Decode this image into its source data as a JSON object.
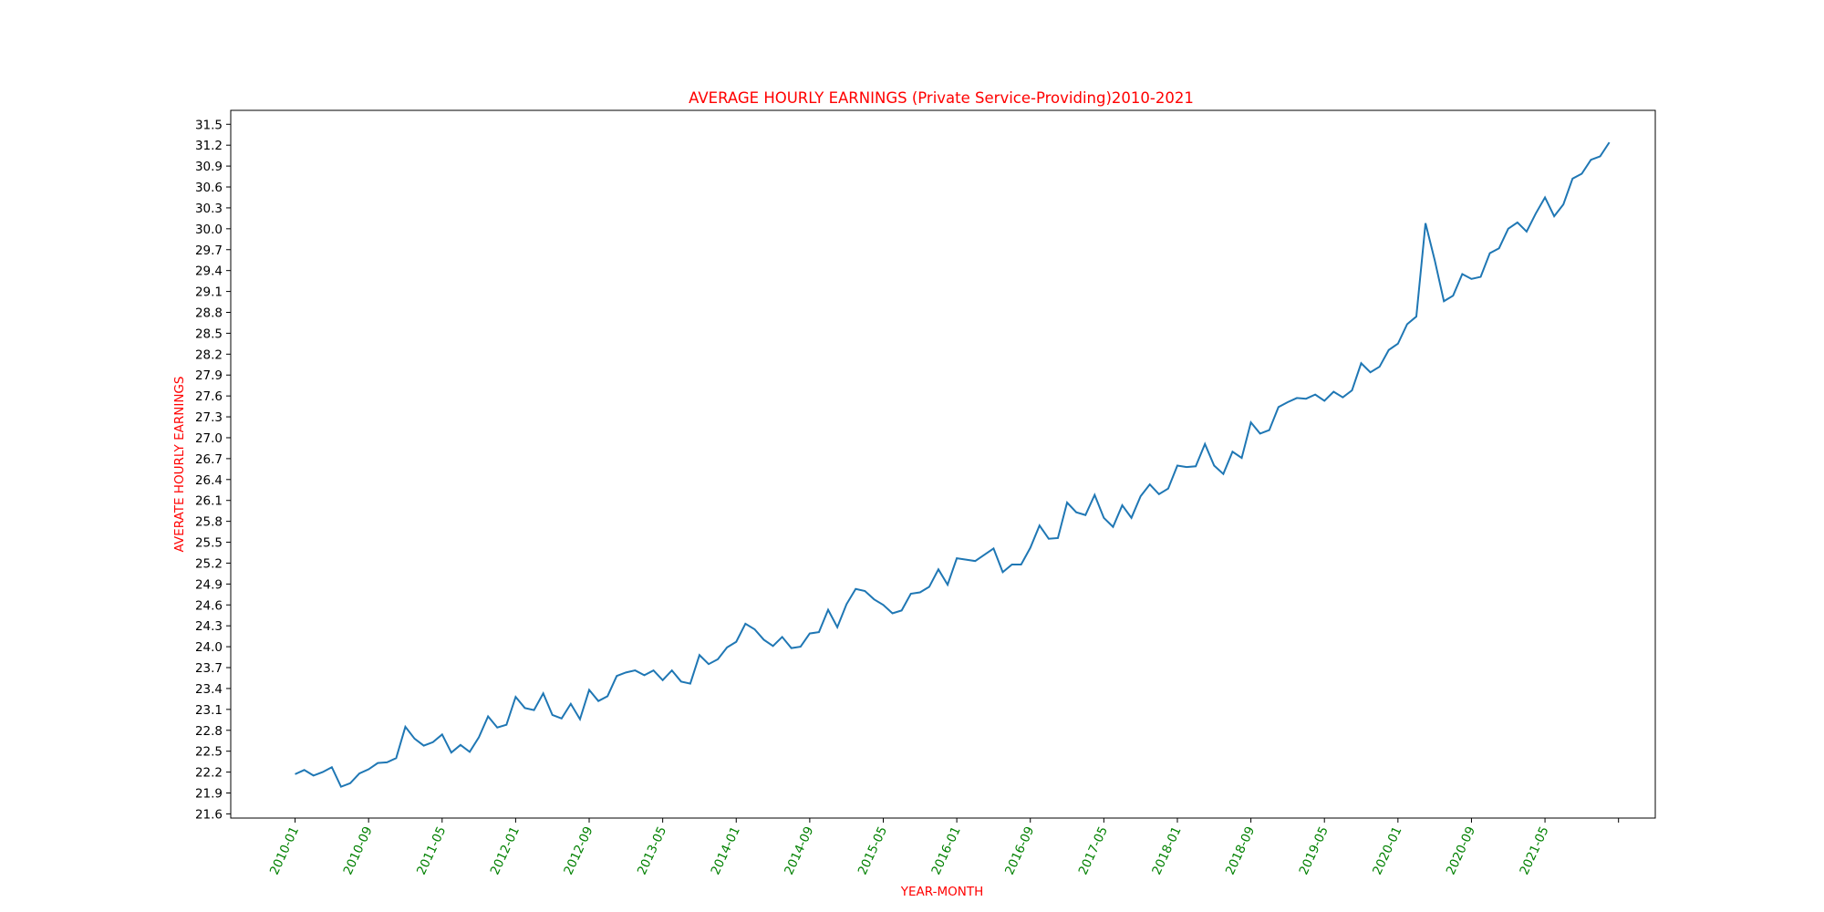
{
  "chart_data": {
    "type": "line",
    "title": "AVERAGE HOURLY EARNINGS (Private Service-Providing)2010-2021",
    "xlabel": "YEAR-MONTH",
    "ylabel": "AVERATE HOURLY EARNINGS",
    "x_tick_labels": [
      "2010-01",
      "2010-09",
      "2011-05",
      "2012-01",
      "2012-09",
      "2013-05",
      "2014-01",
      "2014-09",
      "2015-05",
      "2016-01",
      "2016-09",
      "2017-05",
      "2018-01",
      "2018-09",
      "2019-05",
      "2020-01",
      "2020-09",
      "2021-05"
    ],
    "y_ticks": [
      "21.6",
      "21.9",
      "22.2",
      "22.5",
      "22.8",
      "23.1",
      "23.4",
      "23.7",
      "24.0",
      "24.3",
      "24.6",
      "24.9",
      "25.2",
      "25.5",
      "25.8",
      "26.1",
      "26.4",
      "26.7",
      "27.0",
      "27.3",
      "27.6",
      "27.9",
      "28.2",
      "28.5",
      "28.8",
      "29.1",
      "29.4",
      "29.7",
      "30.0",
      "30.3",
      "30.6",
      "30.9",
      "31.2",
      "31.5"
    ],
    "ylim": [
      21.54,
      31.7
    ],
    "xlim": [
      "2009-06",
      "2022-05"
    ],
    "grid": false,
    "legend": "none",
    "colors": {
      "line": "#1f77b4",
      "title": "#ff0000",
      "axis_labels": "#ff0000",
      "x_tick_labels": "#008000"
    },
    "series": [
      {
        "x": [
          "2010-01",
          "2010-02",
          "2010-03",
          "2010-04",
          "2010-05",
          "2010-06",
          "2010-07",
          "2010-08",
          "2010-09",
          "2010-10",
          "2010-11",
          "2010-12",
          "2011-01",
          "2011-02",
          "2011-03",
          "2011-04",
          "2011-05",
          "2011-06",
          "2011-07",
          "2011-08",
          "2011-09",
          "2011-10",
          "2011-11",
          "2011-12",
          "2012-01",
          "2012-02",
          "2012-03",
          "2012-04",
          "2012-05",
          "2012-06",
          "2012-07",
          "2012-08",
          "2012-09",
          "2012-10",
          "2012-11",
          "2012-12",
          "2013-01",
          "2013-02",
          "2013-03",
          "2013-04",
          "2013-05",
          "2013-06",
          "2013-07",
          "2013-08",
          "2013-09",
          "2013-10",
          "2013-11",
          "2013-12",
          "2014-01",
          "2014-02",
          "2014-03",
          "2014-04",
          "2014-05",
          "2014-06",
          "2014-07",
          "2014-08",
          "2014-09",
          "2014-10",
          "2014-11",
          "2014-12",
          "2015-01",
          "2015-02",
          "2015-03",
          "2015-04",
          "2015-05",
          "2015-06",
          "2015-07",
          "2015-08",
          "2015-09",
          "2015-10",
          "2015-11",
          "2015-12",
          "2016-01",
          "2016-02",
          "2016-03",
          "2016-04",
          "2016-05",
          "2016-06",
          "2016-07",
          "2016-08",
          "2016-09",
          "2016-10",
          "2016-11",
          "2016-12",
          "2017-01",
          "2017-02",
          "2017-03",
          "2017-04",
          "2017-05",
          "2017-06",
          "2017-07",
          "2017-08",
          "2017-09",
          "2017-10",
          "2017-11",
          "2017-12",
          "2018-01",
          "2018-02",
          "2018-03",
          "2018-04",
          "2018-05",
          "2018-06",
          "2018-07",
          "2018-08",
          "2018-09",
          "2018-10",
          "2018-11",
          "2018-12",
          "2019-01",
          "2019-02",
          "2019-03",
          "2019-04",
          "2019-05",
          "2019-06",
          "2019-07",
          "2019-08",
          "2019-09",
          "2019-10",
          "2019-11",
          "2019-12",
          "2020-01",
          "2020-02",
          "2020-03",
          "2020-04",
          "2020-05",
          "2020-06",
          "2020-07",
          "2020-08",
          "2020-09",
          "2020-10",
          "2020-11",
          "2020-12",
          "2021-01",
          "2021-02",
          "2021-03",
          "2021-04",
          "2021-05",
          "2021-06",
          "2021-07",
          "2021-08",
          "2021-09",
          "2021-10",
          "2021-11",
          "2021-12"
        ],
        "y": [
          22.17,
          22.23,
          22.15,
          22.2,
          22.27,
          21.99,
          22.04,
          22.18,
          22.24,
          22.33,
          22.34,
          22.4,
          22.85,
          22.68,
          22.58,
          22.63,
          22.74,
          22.48,
          22.59,
          22.49,
          22.7,
          23.0,
          22.84,
          22.88,
          23.28,
          23.12,
          23.09,
          23.33,
          23.02,
          22.97,
          23.18,
          22.96,
          23.38,
          23.22,
          23.29,
          23.58,
          23.63,
          23.66,
          23.59,
          23.66,
          23.52,
          23.66,
          23.5,
          23.47,
          23.88,
          23.75,
          23.82,
          23.99,
          24.07,
          24.33,
          24.25,
          24.1,
          24.01,
          24.14,
          23.98,
          24.0,
          24.19,
          24.21,
          24.53,
          24.28,
          24.61,
          24.83,
          24.8,
          24.68,
          24.6,
          24.48,
          24.52,
          24.76,
          24.78,
          24.86,
          25.11,
          24.89,
          25.27,
          25.25,
          25.23,
          25.32,
          25.41,
          25.07,
          25.18,
          25.18,
          25.42,
          25.74,
          25.55,
          25.56,
          26.07,
          25.93,
          25.89,
          26.18,
          25.85,
          25.72,
          26.03,
          25.85,
          26.16,
          26.33,
          26.19,
          26.27,
          26.6,
          26.58,
          26.59,
          26.91,
          26.6,
          26.48,
          26.8,
          26.71,
          27.22,
          27.06,
          27.11,
          27.44,
          27.51,
          27.57,
          27.56,
          27.62,
          27.53,
          27.66,
          27.58,
          27.68,
          28.07,
          27.94,
          28.02,
          28.26,
          28.35,
          28.63,
          28.74,
          30.08,
          29.55,
          28.96,
          29.04,
          29.35,
          29.28,
          29.31,
          29.65,
          29.72,
          30.0,
          30.09,
          29.96,
          30.22,
          30.45,
          30.18,
          30.35,
          30.72,
          30.79,
          30.99,
          31.04,
          31.24
        ]
      }
    ]
  }
}
